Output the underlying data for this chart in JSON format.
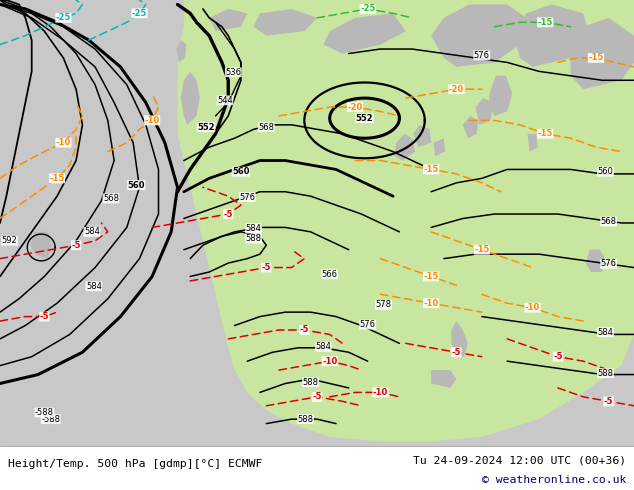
{
  "title_left": "Height/Temp. 500 hPa [gdmp][°C] ECMWF",
  "title_right": "Tu 24-09-2024 12:00 UTC (00+36)",
  "copyright": "© weatheronline.co.uk",
  "bg_color": "#c8c8c8",
  "land_green": "#c8e6a0",
  "land_gray": "#b8b8b8",
  "white_bg": "#ffffff",
  "black": "#000000",
  "orange": "#ff8c00",
  "red": "#dd0000",
  "cyan": "#00bbaa",
  "green_temp": "#33bb33",
  "navy": "#000080"
}
